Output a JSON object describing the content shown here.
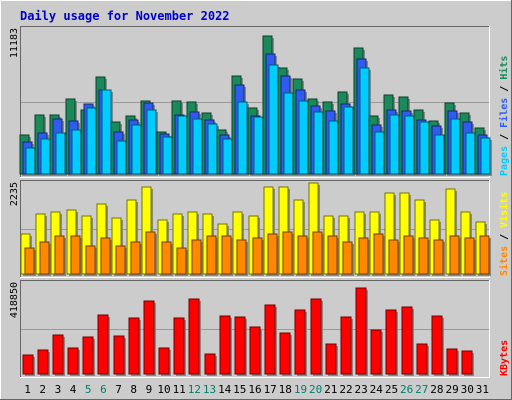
{
  "chart_data": {
    "type": "bar",
    "title": "Daily usage for November 2022",
    "days": [
      "1",
      "2",
      "3",
      "4",
      "5",
      "6",
      "7",
      "8",
      "9",
      "10",
      "11",
      "12",
      "13",
      "14",
      "15",
      "16",
      "17",
      "18",
      "19",
      "20",
      "21",
      "22",
      "23",
      "24",
      "25",
      "26",
      "27",
      "28",
      "29",
      "30",
      "31"
    ],
    "weekend_days": [
      "5",
      "6",
      "12",
      "13",
      "19",
      "20",
      "26",
      "27"
    ],
    "panels": [
      {
        "id": "hits-panel",
        "ymax": 11183,
        "ymax_label": "11183",
        "right_labels": [
          {
            "text": "Pages",
            "color": "#00ccff"
          },
          {
            "text": " / ",
            "color": "#000000"
          },
          {
            "text": "Files",
            "color": "#2e5cf0"
          },
          {
            "text": " / ",
            "color": "#000000"
          },
          {
            "text": "Hits",
            "color": "#1a8a5a"
          }
        ],
        "series": [
          {
            "name": "Hits",
            "color": "#1a8a5a",
            "values": [
              3000,
              4600,
              4600,
              5800,
              5000,
              7500,
              4000,
              4500,
              5700,
              3300,
              5700,
              5600,
              4700,
              3400,
              7600,
              5100,
              10700,
              8200,
              7400,
              5800,
              5600,
              6400,
              9800,
              4500,
              6100,
              6000,
              5000,
              4100,
              5500,
              4700,
              3600
            ]
          },
          {
            "name": "Files",
            "color": "#2e5cf0",
            "values": [
              2500,
              3200,
              4300,
              4100,
              5400,
              6500,
              3300,
              4200,
              5500,
              3100,
              4600,
              4800,
              4200,
              3000,
              6900,
              4500,
              9300,
              7600,
              6500,
              5300,
              4900,
              5400,
              8900,
              3800,
              5000,
              4900,
              4200,
              3700,
              4900,
              4000,
              3000
            ]
          },
          {
            "name": "Pages",
            "color": "#00ccff",
            "values": [
              2000,
              2700,
              3200,
              3400,
              5100,
              6500,
              2600,
              3800,
              5000,
              2900,
              4500,
              4300,
              3900,
              2700,
              5600,
              4400,
              8500,
              6300,
              5700,
              4800,
              4100,
              5200,
              8200,
              3300,
              4600,
              4500,
              4000,
              3000,
              4300,
              3200,
              2800
            ]
          }
        ]
      },
      {
        "id": "visits-panel",
        "ymax": 2235,
        "ymax_label": "2235",
        "right_labels": [
          {
            "text": "Sites",
            "color": "#ff8800"
          },
          {
            "text": " / ",
            "color": "#000000"
          },
          {
            "text": "Visits",
            "color": "#ffff00"
          }
        ],
        "series": [
          {
            "name": "Visits",
            "color": "#ffff00",
            "values": [
              1000,
              1500,
              1550,
              1600,
              1450,
              1750,
              1400,
              1850,
              2150,
              1350,
              1500,
              1550,
              1500,
              1250,
              1550,
              1450,
              2150,
              2150,
              1850,
              2250,
              1450,
              1450,
              1550,
              1550,
              2000,
              2000,
              1850,
              1350,
              2100,
              1550,
              1300
            ]
          },
          {
            "name": "Sites",
            "color": "#ff8800",
            "values": [
              650,
              800,
              950,
              950,
              700,
              900,
              700,
              800,
              1050,
              800,
              650,
              850,
              950,
              950,
              850,
              900,
              1000,
              1050,
              950,
              1050,
              950,
              800,
              900,
              1000,
              850,
              950,
              900,
              850,
              950,
              900,
              950
            ]
          }
        ]
      },
      {
        "id": "kbytes-panel",
        "ymax": 418850,
        "ymax_label": "418850",
        "right_labels": [
          {
            "text": "KBytes",
            "color": "#ff0000"
          }
        ],
        "series": [
          {
            "name": "KBytes",
            "color": "#ff0000",
            "values": [
              90000,
              110000,
              180000,
              120000,
              170000,
              275000,
              175000,
              260000,
              340000,
              120000,
              260000,
              350000,
              95000,
              270000,
              265000,
              220000,
              320000,
              190000,
              300000,
              350000,
              140000,
              265000,
              400000,
              205000,
              300000,
              310000,
              140000,
              270000,
              115000,
              105000,
              0
            ]
          }
        ]
      }
    ]
  }
}
